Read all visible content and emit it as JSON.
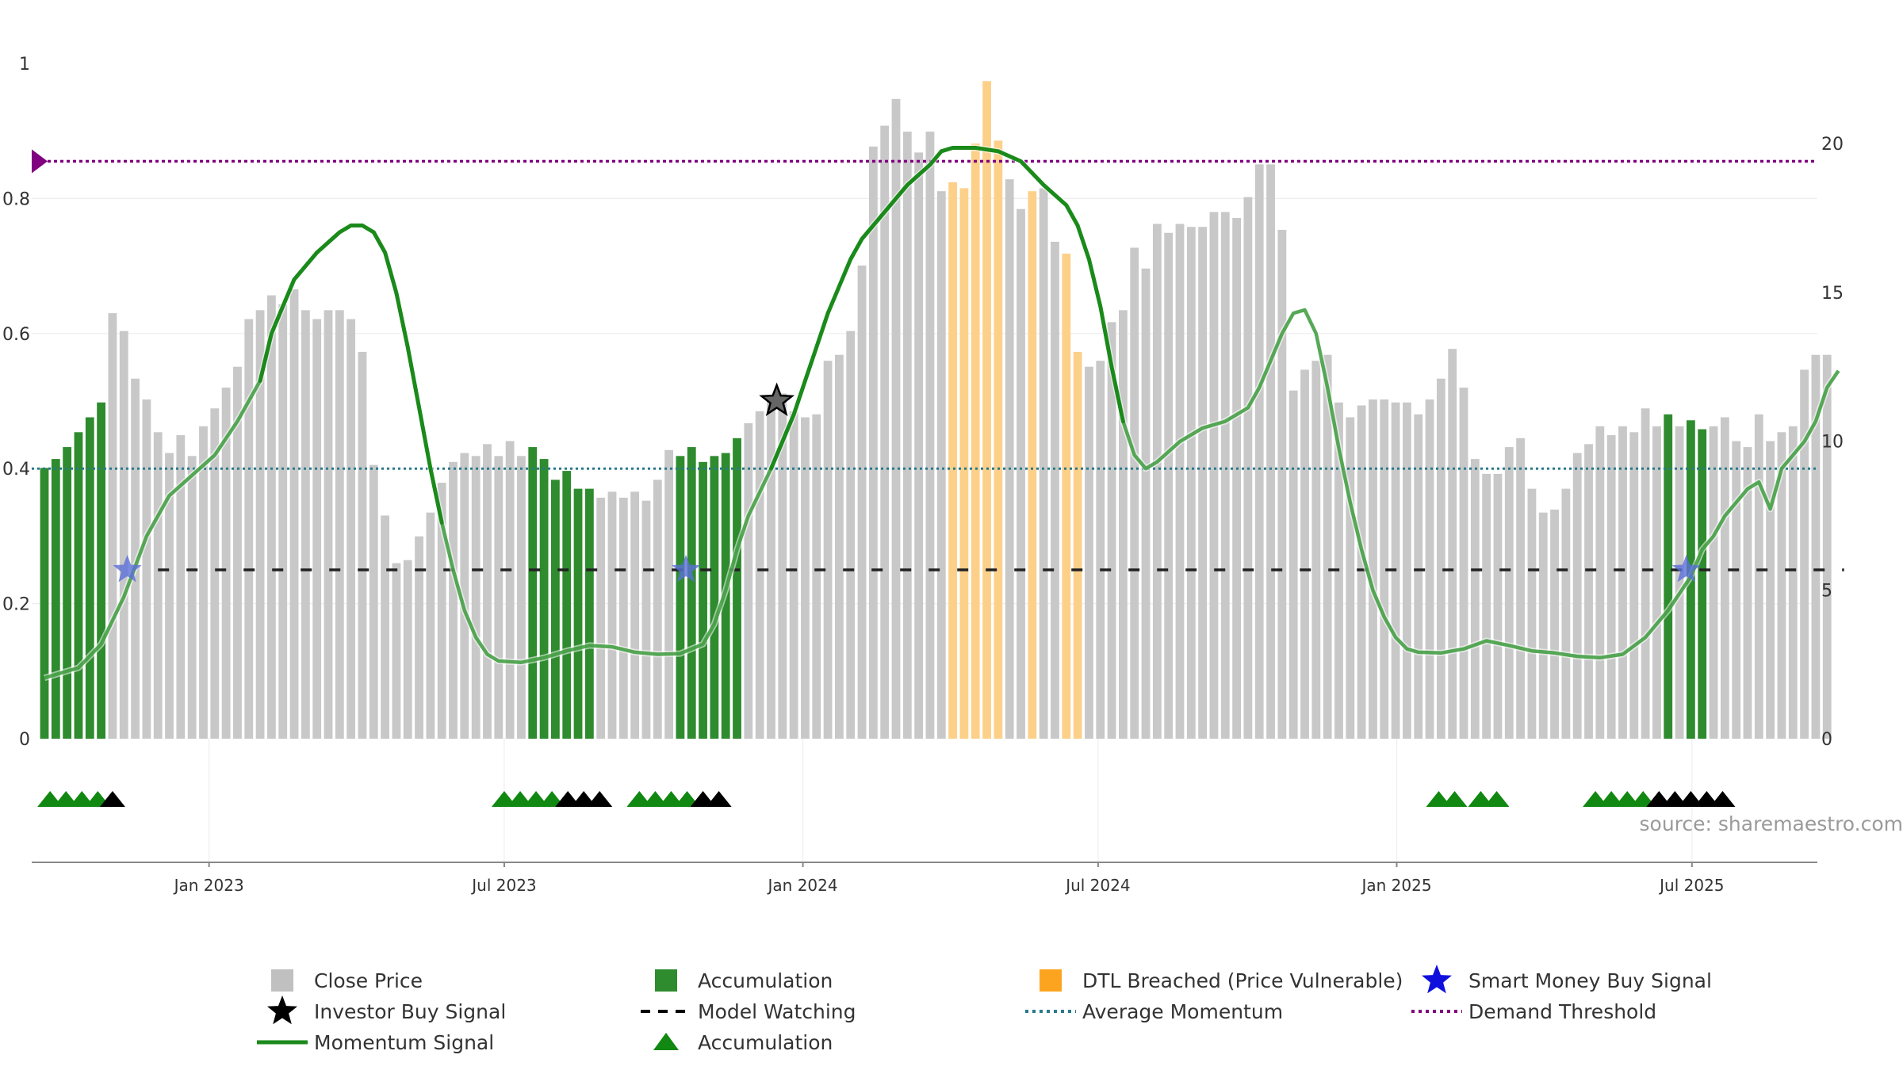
{
  "source": "source: sharemaestro.com",
  "colors": {
    "close": "#c8c8c8",
    "accumulation": "#2e8b2e",
    "dtl": "#fdd08a",
    "momentum": "#1a8a1a",
    "average": "#2a7a8a",
    "threshold": "#800080",
    "watching": "#222222",
    "smart_star": "#5b6fd8",
    "investor_star": "#000000",
    "tri_green": "#118811",
    "tri_black": "#000000"
  },
  "chart_data": {
    "type": "bar",
    "left_axis": {
      "range": [
        0,
        1
      ],
      "ticks": [
        "0",
        "0.2",
        "0.4",
        "0.6",
        "0.8",
        "1"
      ],
      "tick_values": [
        0,
        0.2,
        0.4,
        0.6,
        0.8,
        1
      ]
    },
    "right_axis": {
      "range": [
        0,
        22.8
      ],
      "ticks": [
        "0",
        "5",
        "10",
        "15",
        "20"
      ],
      "tick_values": [
        0,
        5,
        10,
        15,
        20
      ]
    },
    "x_ticks": [
      {
        "label": "Jan 2023",
        "index": 14.5
      },
      {
        "label": "Jul 2023",
        "index": 40.5
      },
      {
        "label": "Jan 2024",
        "index": 66.8
      },
      {
        "label": "Jul 2024",
        "index": 92.8
      },
      {
        "label": "Jan 2025",
        "index": 119.1
      },
      {
        "label": "Jul 2025",
        "index": 145.1
      }
    ],
    "close_price": [
      9.1,
      9.4,
      9.8,
      10.3,
      10.8,
      11.3,
      14.3,
      13.7,
      12.1,
      11.4,
      10.3,
      9.6,
      10.2,
      9.5,
      10.5,
      11.1,
      11.8,
      12.5,
      14.1,
      14.4,
      14.9,
      14.6,
      15.1,
      14.4,
      14.1,
      14.4,
      14.4,
      14.1,
      13.0,
      9.2,
      7.5,
      5.9,
      6.0,
      6.8,
      7.6,
      8.6,
      9.3,
      9.6,
      9.5,
      9.9,
      9.5,
      10.0,
      9.5,
      9.8,
      9.4,
      8.7,
      9.0,
      8.4,
      8.4,
      8.1,
      8.3,
      8.1,
      8.3,
      8.0,
      8.7,
      9.7,
      9.5,
      9.8,
      9.3,
      9.5,
      9.6,
      10.1,
      10.6,
      11.0,
      11.4,
      11.6,
      11.0,
      10.8,
      10.9,
      12.7,
      12.9,
      13.7,
      15.9,
      19.9,
      20.6,
      21.5,
      20.4,
      19.7,
      20.4,
      18.4,
      18.7,
      18.5,
      20.0,
      22.1,
      20.1,
      18.8,
      17.8,
      18.4,
      18.5,
      16.7,
      16.3,
      13.0,
      12.5,
      12.7,
      14.0,
      14.4,
      16.5,
      15.8,
      17.3,
      17.0,
      17.3,
      17.2,
      17.2,
      17.7,
      17.7,
      17.5,
      18.2,
      19.3,
      19.3,
      17.1,
      11.7,
      12.4,
      12.7,
      12.9,
      11.3,
      10.8,
      11.2,
      11.4,
      11.4,
      11.3,
      11.3,
      10.9,
      11.4,
      12.1,
      13.1,
      11.8,
      9.4,
      8.9,
      8.9,
      9.8,
      10.1,
      8.4,
      7.6,
      7.7,
      8.4,
      9.6,
      9.9,
      10.5,
      10.2,
      10.5,
      10.3,
      11.1,
      10.5,
      10.9,
      10.5,
      10.7,
      10.4,
      10.5,
      10.8,
      10.0,
      9.8,
      10.9,
      10.0,
      10.3,
      10.5,
      12.4,
      12.9,
      12.9
    ],
    "bar_types": "AAAAAACCCCCCCCCCCCCCCCCCCCCCCCCCCCCCCCCCCCCAAAAAACCCCCCCAAAAAACCCCCCCCCCCCCCCCCCDDDDDCCDCCDDCCCCCCCCCCCCCCCCCCCCCCCCCCCCCCCCCCCCCCCCCCCCCCCCCCCACAACCCCCCCCCCCCCCCCCCCAAAAAAAACCCCCCCCCCCCC",
    "bar_type_legend": {
      "C": "Close Price",
      "A": "Accumulation",
      "D": "DTL Breached (Price Vulnerable)"
    },
    "momentum_signal": [
      [
        0,
        0.09
      ],
      [
        3,
        0.105
      ],
      [
        5,
        0.14
      ],
      [
        7,
        0.21
      ],
      [
        9,
        0.3
      ],
      [
        11,
        0.36
      ],
      [
        13,
        0.39
      ],
      [
        15,
        0.42
      ],
      [
        17,
        0.47
      ],
      [
        19,
        0.53
      ],
      [
        20,
        0.6
      ],
      [
        21,
        0.64
      ],
      [
        22,
        0.68
      ],
      [
        24,
        0.72
      ],
      [
        26,
        0.75
      ],
      [
        27,
        0.76
      ],
      [
        28,
        0.76
      ],
      [
        29,
        0.75
      ],
      [
        30,
        0.72
      ],
      [
        31,
        0.66
      ],
      [
        32,
        0.58
      ],
      [
        33,
        0.49
      ],
      [
        34,
        0.4
      ],
      [
        35,
        0.32
      ],
      [
        36,
        0.25
      ],
      [
        37,
        0.19
      ],
      [
        38,
        0.15
      ],
      [
        39,
        0.125
      ],
      [
        40,
        0.115
      ],
      [
        42,
        0.113
      ],
      [
        44,
        0.12
      ],
      [
        46,
        0.13
      ],
      [
        48,
        0.138
      ],
      [
        50,
        0.136
      ],
      [
        52,
        0.128
      ],
      [
        54,
        0.125
      ],
      [
        56,
        0.126
      ],
      [
        58,
        0.14
      ],
      [
        59,
        0.17
      ],
      [
        60,
        0.22
      ],
      [
        61,
        0.28
      ],
      [
        62,
        0.33
      ],
      [
        64,
        0.4
      ],
      [
        65,
        0.44
      ],
      [
        66,
        0.48
      ],
      [
        67,
        0.53
      ],
      [
        68,
        0.58
      ],
      [
        69,
        0.63
      ],
      [
        70,
        0.67
      ],
      [
        71,
        0.71
      ],
      [
        72,
        0.74
      ],
      [
        74,
        0.78
      ],
      [
        76,
        0.82
      ],
      [
        78,
        0.85
      ],
      [
        79,
        0.87
      ],
      [
        80,
        0.875
      ],
      [
        82,
        0.875
      ],
      [
        84,
        0.87
      ],
      [
        86,
        0.855
      ],
      [
        88,
        0.82
      ],
      [
        90,
        0.79
      ],
      [
        91,
        0.76
      ],
      [
        92,
        0.71
      ],
      [
        93,
        0.64
      ],
      [
        94,
        0.55
      ],
      [
        95,
        0.47
      ],
      [
        96,
        0.42
      ],
      [
        97,
        0.4
      ],
      [
        98,
        0.41
      ],
      [
        100,
        0.44
      ],
      [
        102,
        0.46
      ],
      [
        104,
        0.47
      ],
      [
        106,
        0.49
      ],
      [
        107,
        0.52
      ],
      [
        108,
        0.56
      ],
      [
        109,
        0.6
      ],
      [
        110,
        0.63
      ],
      [
        111,
        0.635
      ],
      [
        112,
        0.6
      ],
      [
        113,
        0.52
      ],
      [
        114,
        0.43
      ],
      [
        115,
        0.35
      ],
      [
        116,
        0.28
      ],
      [
        117,
        0.22
      ],
      [
        118,
        0.18
      ],
      [
        119,
        0.15
      ],
      [
        120,
        0.133
      ],
      [
        121,
        0.128
      ],
      [
        123,
        0.127
      ],
      [
        125,
        0.133
      ],
      [
        127,
        0.145
      ],
      [
        129,
        0.138
      ],
      [
        131,
        0.13
      ],
      [
        133,
        0.127
      ],
      [
        135,
        0.122
      ],
      [
        137,
        0.12
      ],
      [
        139,
        0.125
      ],
      [
        141,
        0.15
      ],
      [
        143,
        0.19
      ],
      [
        145,
        0.24
      ],
      [
        146,
        0.28
      ],
      [
        147,
        0.3
      ],
      [
        148,
        0.33
      ],
      [
        150,
        0.37
      ],
      [
        151,
        0.38
      ],
      [
        152,
        0.34
      ],
      [
        153,
        0.4
      ],
      [
        154,
        0.42
      ],
      [
        155,
        0.44
      ],
      [
        156,
        0.47
      ],
      [
        157,
        0.52
      ],
      [
        158,
        0.545
      ]
    ],
    "momentum_bold_ranges": [
      [
        18,
        35
      ],
      [
        63,
        95
      ]
    ],
    "average_momentum": 0.4,
    "demand_threshold": 0.855,
    "model_watching": {
      "y": 0.25,
      "from": 10,
      "to": 158.5
    },
    "investor_buy_signal": [
      {
        "index": 64.5,
        "y": 0.5
      }
    ],
    "smart_money_buy_signal": [
      {
        "index": 7.3,
        "y": 0.25
      },
      {
        "index": 56.5,
        "y": 0.25
      },
      {
        "index": 144.6,
        "y": 0.25
      }
    ],
    "accumulation_markers": {
      "green": [
        0.5,
        1.9,
        3.3,
        4.7,
        40.5,
        41.9,
        43.3,
        44.7,
        52.4,
        53.8,
        55.2,
        56.6,
        122.8,
        124.2,
        126.5,
        127.9,
        136.6,
        138.0,
        139.4,
        140.8
      ],
      "black": [
        6.0,
        46.1,
        47.5,
        48.9,
        58.0,
        59.4,
        142.2,
        143.6,
        145.0,
        146.4,
        147.8
      ]
    },
    "legend": [
      {
        "label": "Close Price",
        "kind": "square",
        "color": "#c0c0c0"
      },
      {
        "label": "Accumulation",
        "kind": "square",
        "color": "#2e8b2e"
      },
      {
        "label": "DTL Breached (Price Vulnerable)",
        "kind": "square",
        "color": "#fca420"
      },
      {
        "label": "Smart Money Buy Signal",
        "kind": "star",
        "color": "#1010dd"
      },
      {
        "label": "Investor Buy Signal",
        "kind": "star",
        "color": "#000000"
      },
      {
        "label": "Model Watching",
        "kind": "dash",
        "color": "#000000"
      },
      {
        "label": "Average Momentum",
        "kind": "dot",
        "color": "#2a7a8a"
      },
      {
        "label": "Demand Threshold",
        "kind": "dot",
        "color": "#800080"
      },
      {
        "label": "Momentum Signal",
        "kind": "line",
        "color": "#1a8a1a"
      },
      {
        "label": "Accumulation",
        "kind": "triangle",
        "color": "#118811"
      }
    ]
  }
}
